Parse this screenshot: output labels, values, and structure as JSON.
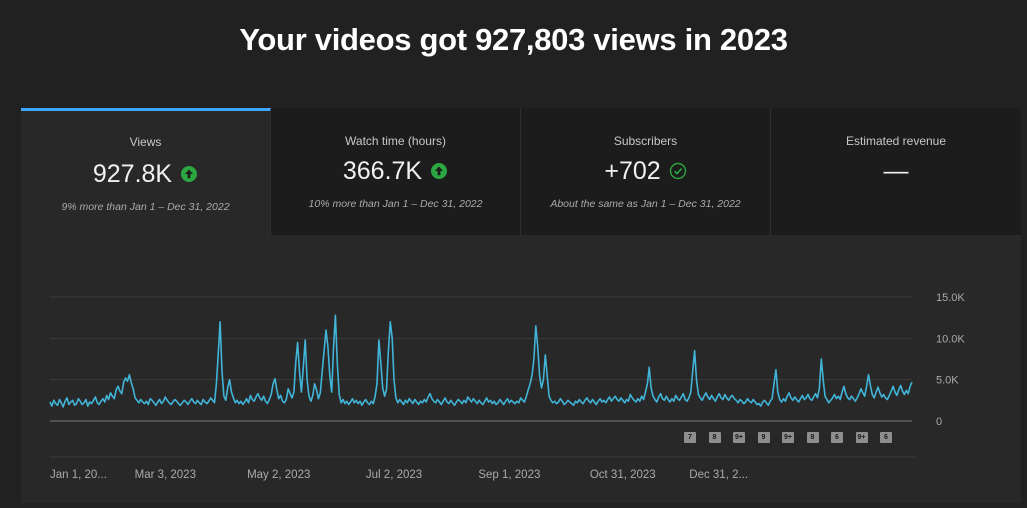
{
  "headline": "Your videos got 927,803 views in 2023",
  "tabs": [
    {
      "label": "Views",
      "value": "927.8K",
      "indicator": "up-icon",
      "compare": "9% more than Jan 1 – Dec 31, 2022",
      "active": true
    },
    {
      "label": "Watch time (hours)",
      "value": "366.7K",
      "indicator": "up-icon",
      "compare": "10% more than Jan 1 – Dec 31, 2022",
      "active": false
    },
    {
      "label": "Subscribers",
      "value": "+702",
      "indicator": "check-icon",
      "compare": "About the same as Jan 1 – Dec 31, 2022",
      "active": false
    },
    {
      "label": "Estimated revenue",
      "value": "—",
      "indicator": "",
      "compare": "",
      "active": false
    }
  ],
  "colors": {
    "background": "#212121",
    "panel": "#282828",
    "inactive_tab": "#1c1c1c",
    "accent": "#3ea6ff",
    "line": "#41b4d8",
    "up_green": "#2ba640"
  },
  "markers": [
    "7",
    "8",
    "9+",
    "9",
    "9+",
    "8",
    "6",
    "9+",
    "6"
  ],
  "chart_data": {
    "type": "line",
    "xlabel": "",
    "ylabel": "",
    "ylim": [
      0,
      15000
    ],
    "yticks": [
      0,
      5000,
      10000,
      15000
    ],
    "ytick_labels": [
      "0",
      "5.0K",
      "10.0K",
      "15.0K"
    ],
    "xtick_labels": [
      "Jan 1, 20...",
      "Mar 3, 2023",
      "May 2, 2023",
      "Jul 2, 2023",
      "Sep 1, 2023",
      "Oct 31, 2023",
      "Dec 31, 2..."
    ],
    "xtick_days": [
      0,
      61,
      121,
      182,
      243,
      303,
      364
    ],
    "grid": true,
    "x_start": "Jan 1, 2023",
    "x_end": "Dec 31, 2023",
    "series": [
      {
        "values": [
          2300,
          1800,
          2500,
          2100,
          1900,
          2600,
          2200,
          1700,
          2400,
          2800,
          2000,
          2300,
          2500,
          1900,
          2100,
          2700,
          2400,
          2000,
          2200,
          2600,
          1800,
          2300,
          2100,
          2500,
          2900,
          2200,
          2000,
          2400,
          2700,
          2300,
          3100,
          2600,
          3400,
          3000,
          2700,
          3800,
          4200,
          3600,
          3300,
          4700,
          5200,
          4800,
          5600,
          4600,
          3900,
          2800,
          2500,
          2200,
          2600,
          2300,
          2100,
          2400,
          2000,
          2700,
          2500,
          2200,
          1900,
          2300,
          2600,
          2100,
          2400,
          2900,
          2500,
          2200,
          2000,
          2300,
          2600,
          2400,
          2100,
          1900,
          2200,
          2500,
          2300,
          2000,
          2400,
          2700,
          2300,
          2100,
          2500,
          2200,
          2000,
          2600,
          2300,
          2100,
          2400,
          2800,
          2500,
          2200,
          4500,
          8000,
          12000,
          6000,
          3000,
          2500,
          4000,
          5000,
          3500,
          2800,
          2200,
          2500,
          2100,
          2400,
          2000,
          2300,
          2700,
          2200,
          3100,
          2600,
          2400,
          2900,
          3300,
          2800,
          2500,
          3000,
          2400,
          2100,
          2600,
          3200,
          4500,
          5100,
          3800,
          2700,
          3100,
          2400,
          2200,
          2600,
          3900,
          3300,
          2800,
          3500,
          7000,
          9500,
          6000,
          3500,
          6500,
          9800,
          5000,
          3000,
          2400,
          3100,
          4500,
          3800,
          2700,
          3400,
          6000,
          8500,
          11000,
          9000,
          5500,
          3500,
          9000,
          12800,
          7000,
          3200,
          2200,
          2600,
          2100,
          2400,
          2000,
          2300,
          2700,
          2200,
          2500,
          2100,
          2400,
          1900,
          2300,
          2600,
          2200,
          2000,
          2400,
          2100,
          3000,
          4500,
          9800,
          7000,
          4000,
          3000,
          3800,
          8500,
          12000,
          10000,
          5000,
          2800,
          2200,
          2600,
          2300,
          2000,
          2500,
          2200,
          2700,
          2400,
          2100,
          2600,
          2300,
          2000,
          2400,
          2200,
          2600,
          2300,
          2900,
          3300,
          2700,
          2400,
          2200,
          2600,
          2300,
          2000,
          2400,
          2800,
          2300,
          2100,
          2500,
          2200,
          1900,
          2300,
          2600,
          2400,
          2100,
          2500,
          2200,
          2900,
          2600,
          2300,
          2700,
          2400,
          2100,
          2500,
          2200,
          2000,
          2400,
          2800,
          2300,
          2500,
          2100,
          2400,
          2000,
          2200,
          2600,
          2300,
          2000,
          2400,
          2700,
          2200,
          2500,
          2300,
          2100,
          2400,
          2200,
          2800,
          2500,
          2300,
          3000,
          3800,
          4500,
          5500,
          7500,
          11500,
          9000,
          5500,
          4000,
          5000,
          8000,
          5500,
          3000,
          2500,
          2200,
          2400,
          2100,
          2300,
          2700,
          2400,
          2000,
          2200,
          2500,
          2300,
          2100,
          1900,
          2400,
          2200,
          2600,
          2300,
          2100,
          2500,
          2800,
          2400,
          2200,
          2600,
          2300,
          2000,
          2400,
          2700,
          2300,
          2500,
          2200,
          2600,
          2900,
          2400,
          2700,
          3000,
          2600,
          2400,
          2800,
          2500,
          2200,
          2600,
          2400,
          3200,
          2800,
          2500,
          2300,
          2700,
          2400,
          3000,
          2600,
          3500,
          4500,
          6500,
          4000,
          3000,
          2600,
          2300,
          2900,
          3300,
          2700,
          2500,
          3000,
          2600,
          2300,
          2700,
          2400,
          3100,
          2700,
          2500,
          2900,
          3300,
          2600,
          2400,
          2800,
          3500,
          6000,
          8500,
          5000,
          3200,
          2800,
          2500,
          3000,
          3400,
          2900,
          2600,
          3100,
          2700,
          2400,
          2900,
          3300,
          2800,
          2600,
          3200,
          2800,
          2500,
          2900,
          3100,
          2700,
          2500,
          2200,
          2600,
          2400,
          2100,
          2300,
          2700,
          2400,
          2200,
          2600,
          2300,
          2000,
          2100,
          1800,
          2300,
          2500,
          2200,
          1900,
          2400,
          2700,
          4500,
          6200,
          3500,
          2600,
          2300,
          2700,
          2400,
          3000,
          3400,
          2800,
          2500,
          2900,
          2600,
          2300,
          2700,
          3100,
          2600,
          2800,
          3200,
          2700,
          2500,
          2900,
          3300,
          2800,
          4000,
          7500,
          5000,
          3000,
          2600,
          2200,
          2500,
          2800,
          3200,
          2700,
          3000,
          2600,
          3500,
          4200,
          3300,
          2800,
          2600,
          3000,
          2700,
          2400,
          2800,
          3300,
          3900,
          3400,
          3000,
          4200,
          5600,
          4300,
          3200,
          2800,
          3500,
          4100,
          3400,
          2900,
          3200,
          2800,
          2600,
          3100,
          3600,
          4200,
          3500,
          3100,
          3800,
          4300,
          3600,
          3200,
          3700,
          3300,
          4200,
          4700
        ]
      }
    ]
  }
}
